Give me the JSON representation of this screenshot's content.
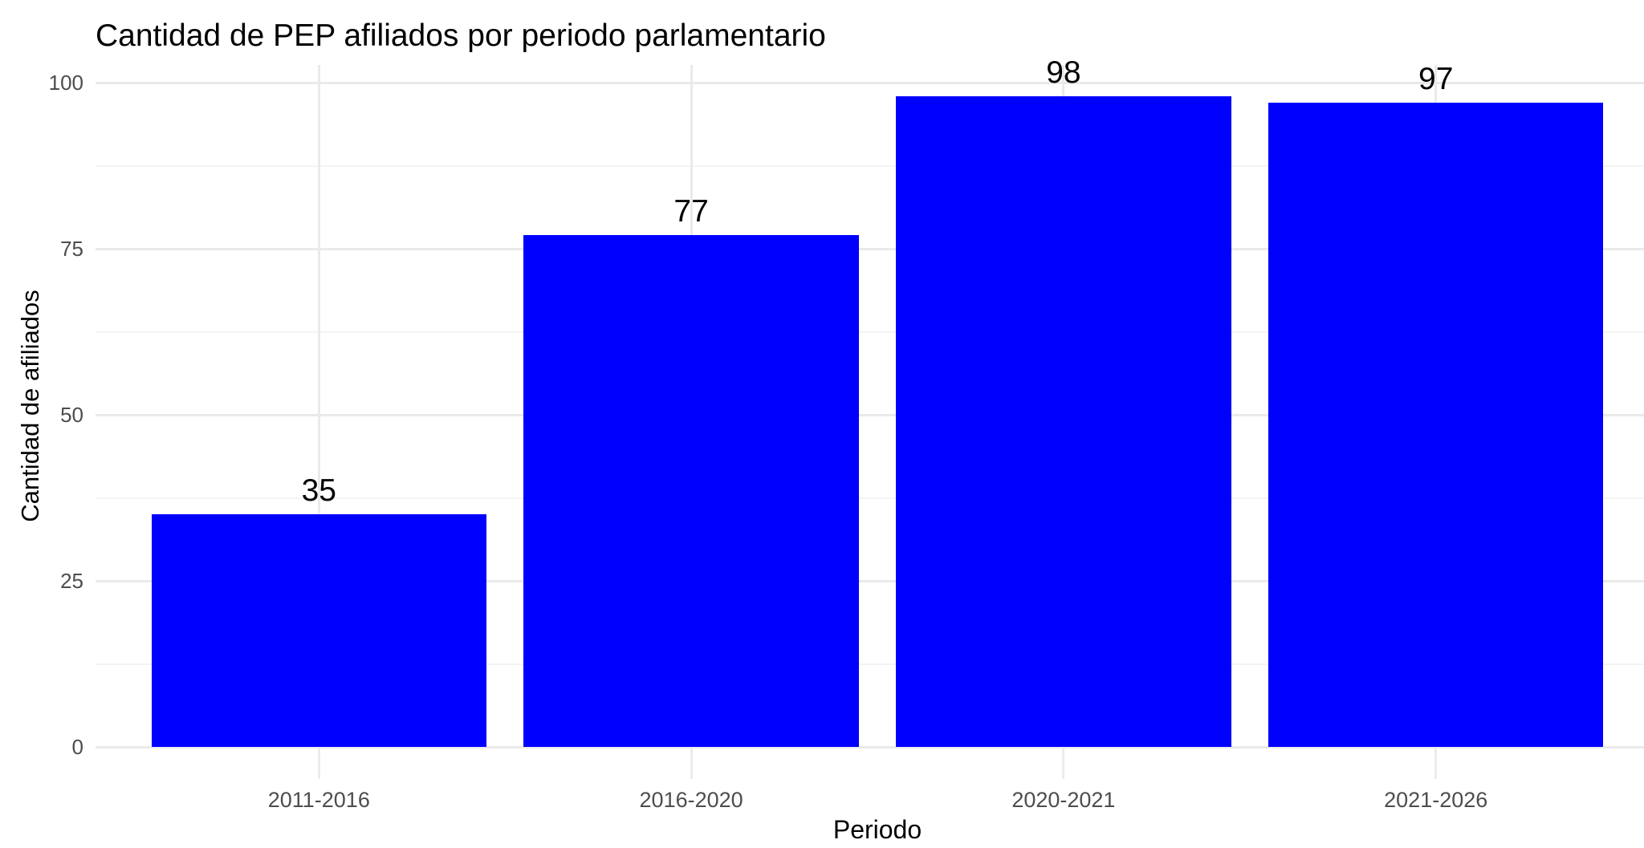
{
  "chart_data": {
    "type": "bar",
    "title": "Cantidad de PEP afiliados por periodo parlamentario",
    "xlabel": "Periodo",
    "ylabel": "Cantidad de afiliados",
    "categories": [
      "2011-2016",
      "2016-2020",
      "2020-2021",
      "2021-2026"
    ],
    "values": [
      35,
      77,
      98,
      97
    ],
    "bar_labels": [
      "35",
      "77",
      "98",
      "97"
    ],
    "y_ticks": [
      0,
      25,
      50,
      75,
      100
    ],
    "y_tick_labels": [
      "0",
      "25",
      "50",
      "75",
      "100"
    ],
    "y_minor_ticks": [
      12.5,
      37.5,
      62.5,
      87.5
    ],
    "ylim": [
      0,
      100
    ],
    "grid": "major-and-minor",
    "legend": "none",
    "colors": {
      "bar_fill": "#0000FF",
      "grid_major": "#EAEAEA",
      "grid_minor": "#F4F4F4",
      "tick_mark": "#ECECEC",
      "axis_text": "#4D4D4D",
      "title_text": "#000000",
      "background": "#FFFFFF"
    }
  }
}
